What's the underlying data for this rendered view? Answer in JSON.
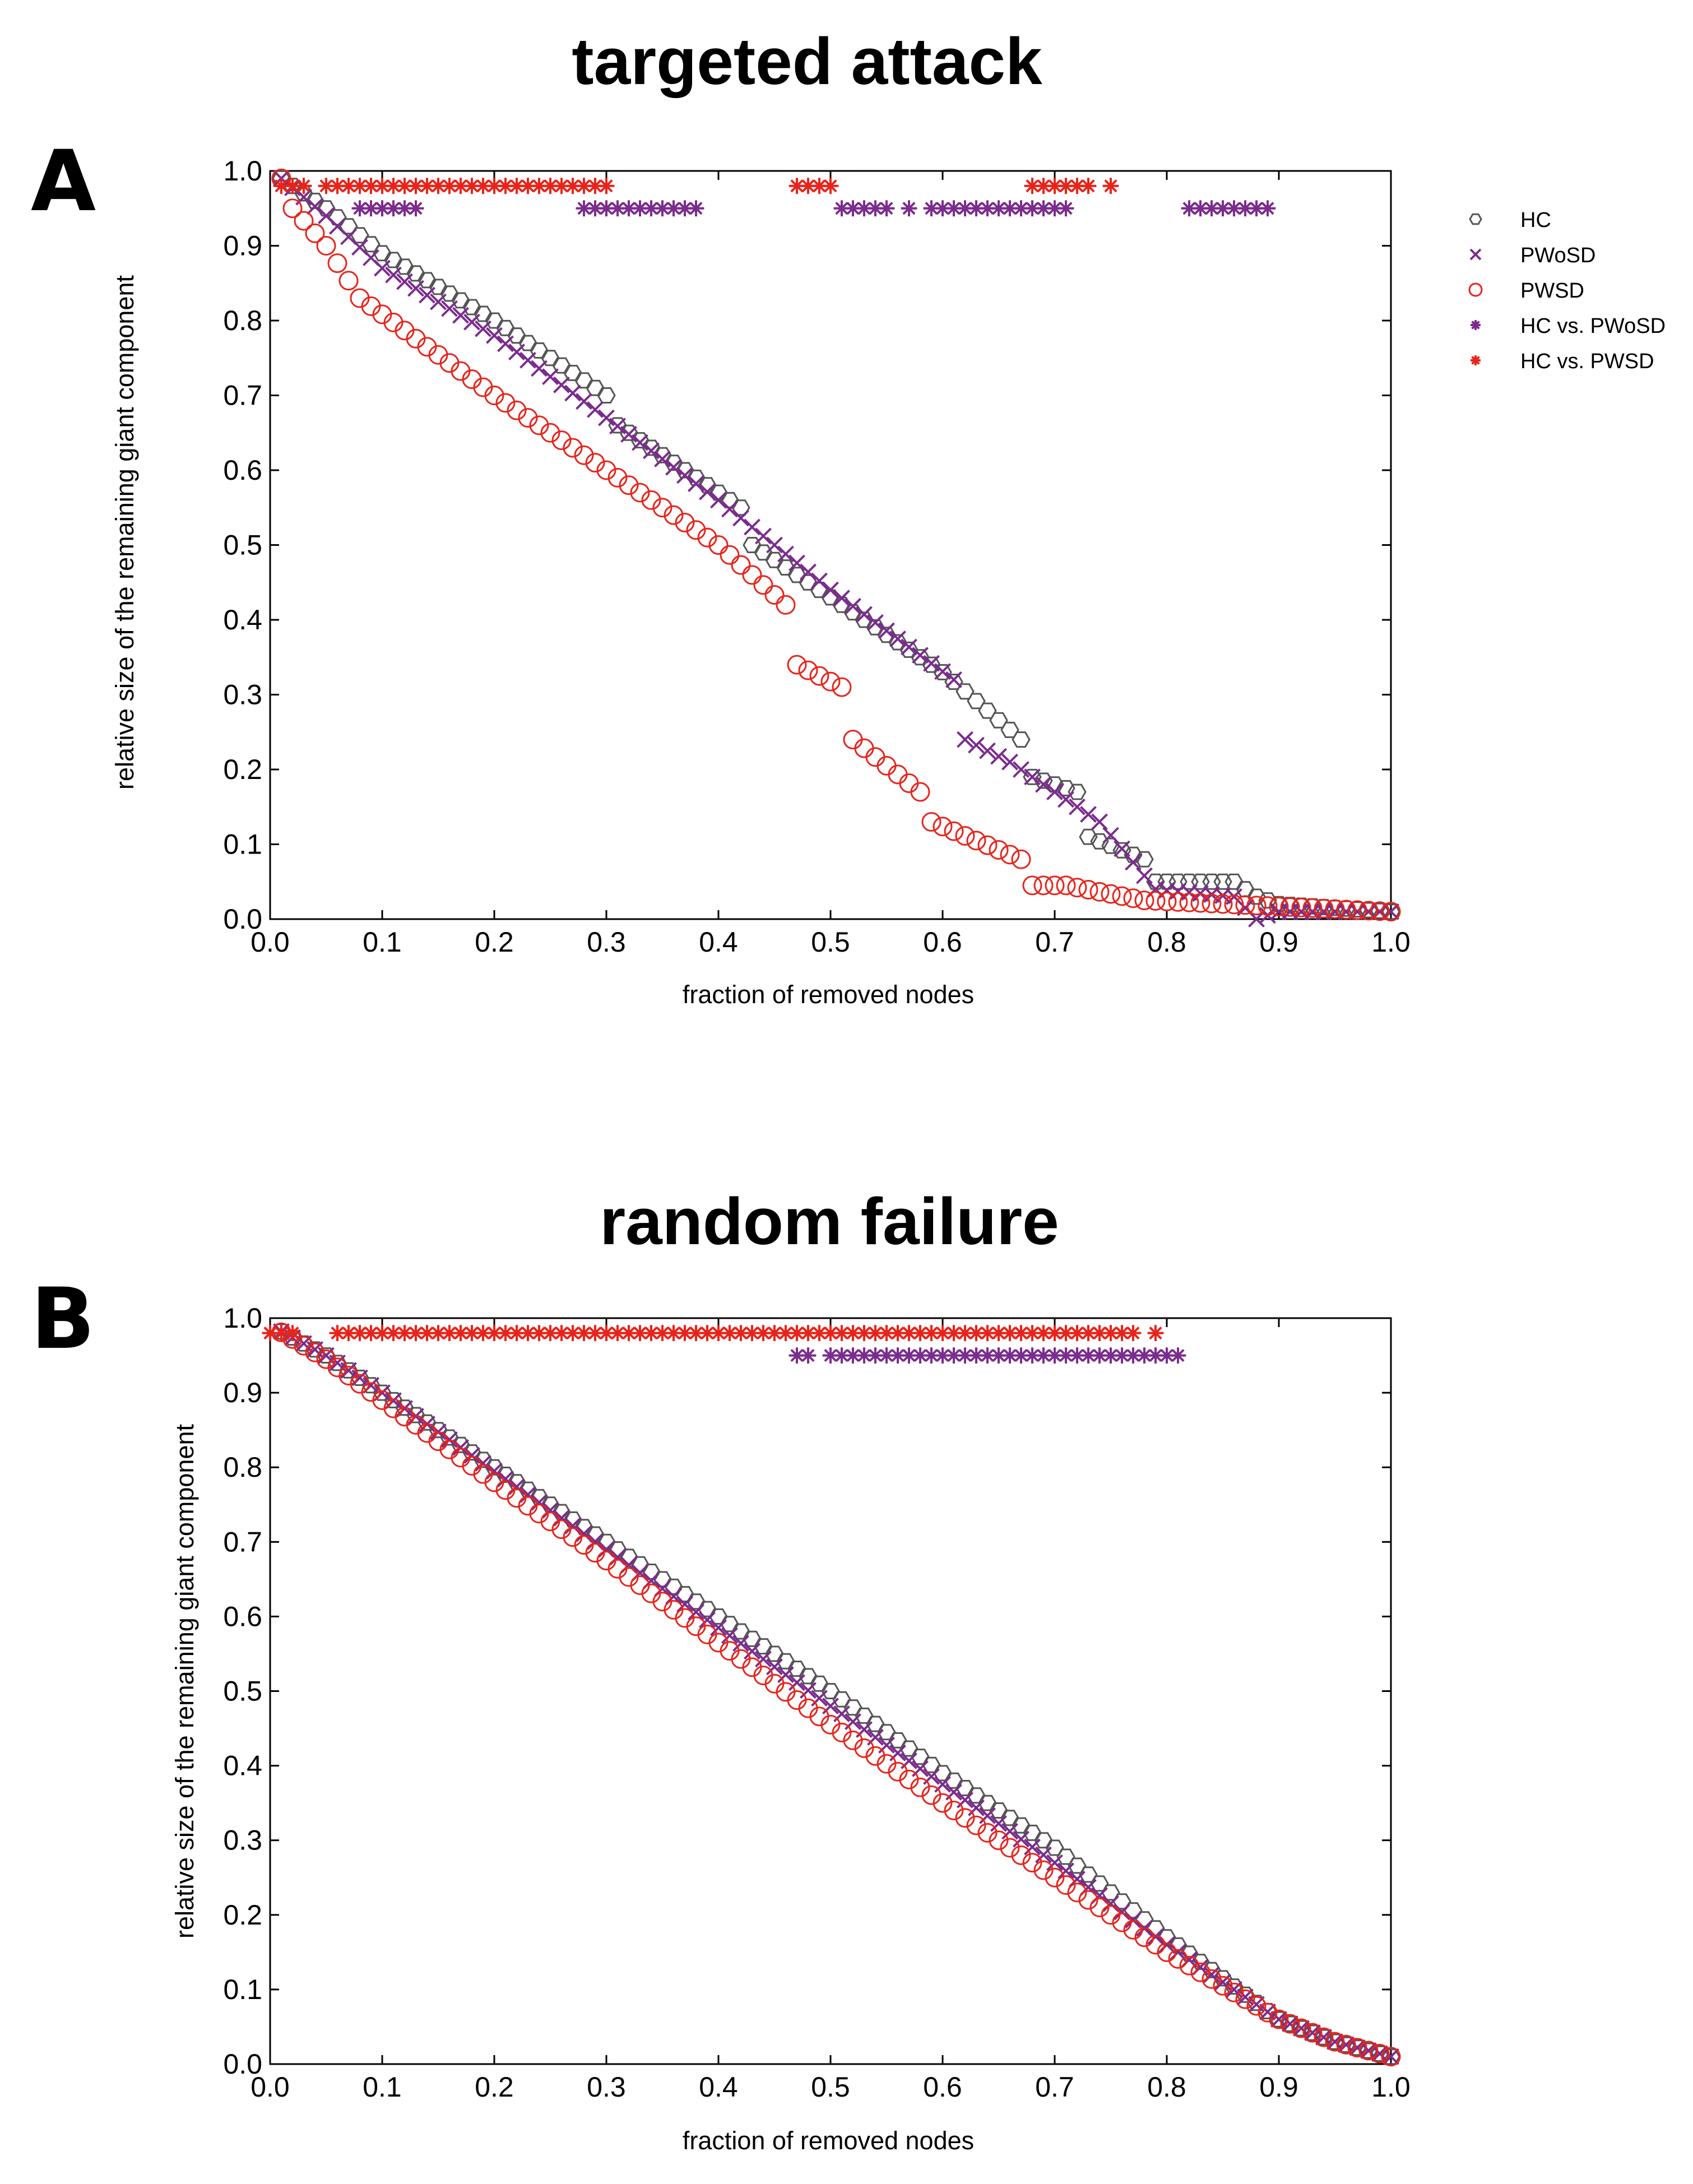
{
  "chart_data": [
    {
      "panel": "A",
      "type": "scatter",
      "title": "targeted attack",
      "xlabel": "fraction of removed nodes",
      "ylabel": "relative size of the remaining giant component",
      "xlim": [
        0,
        1
      ],
      "ylim": [
        0,
        1
      ],
      "xticks": [
        "0.0",
        "0.1",
        "0.2",
        "0.3",
        "0.4",
        "0.5",
        "0.6",
        "0.7",
        "0.8",
        "0.9",
        "1.0"
      ],
      "yticks": [
        "0.0",
        "0.1",
        "0.2",
        "0.3",
        "0.4",
        "0.5",
        "0.6",
        "0.7",
        "0.8",
        "0.9",
        "1.0"
      ],
      "legend": [
        {
          "label": "HC",
          "marker": "hexagon",
          "color": "#555555"
        },
        {
          "label": "PWoSD",
          "marker": "x",
          "color": "#7B2C8E"
        },
        {
          "label": "PWSD",
          "marker": "circle",
          "color": "#E8231A"
        },
        {
          "label": "HC  vs. PWoSD",
          "marker": "star",
          "color": "#7B2C8E"
        },
        {
          "label": "HC  vs. PWSD",
          "marker": "star",
          "color": "#E8231A"
        }
      ],
      "series": [
        {
          "name": "HC",
          "marker": "hexagon",
          "color": "#555555",
          "knots": [
            [
              0.01,
              0.99
            ],
            [
              0.05,
              0.95
            ],
            [
              0.1,
              0.89
            ],
            [
              0.2,
              0.8
            ],
            [
              0.3,
              0.7
            ],
            [
              0.31,
              0.66
            ],
            [
              0.42,
              0.55
            ],
            [
              0.43,
              0.5
            ],
            [
              0.6,
              0.33
            ],
            [
              0.67,
              0.24
            ],
            [
              0.68,
              0.19
            ],
            [
              0.72,
              0.17
            ],
            [
              0.73,
              0.11
            ],
            [
              0.78,
              0.08
            ],
            [
              0.79,
              0.05
            ],
            [
              0.86,
              0.05
            ],
            [
              0.88,
              0.03
            ],
            [
              0.9,
              0.02
            ],
            [
              1.0,
              0.01
            ]
          ]
        },
        {
          "name": "PWoSD",
          "marker": "x",
          "color": "#7B2C8E",
          "knots": [
            [
              0.01,
              0.99
            ],
            [
              0.05,
              0.94
            ],
            [
              0.1,
              0.87
            ],
            [
              0.2,
              0.78
            ],
            [
              0.3,
              0.67
            ],
            [
              0.4,
              0.56
            ],
            [
              0.5,
              0.44
            ],
            [
              0.61,
              0.32
            ],
            [
              0.62,
              0.24
            ],
            [
              0.66,
              0.21
            ],
            [
              0.74,
              0.13
            ],
            [
              0.79,
              0.04
            ],
            [
              0.86,
              0.03
            ],
            [
              0.88,
              0.0
            ],
            [
              0.9,
              0.01
            ],
            [
              1.0,
              0.01
            ]
          ]
        },
        {
          "name": "PWSD",
          "marker": "circle",
          "color": "#E8231A",
          "knots": [
            [
              0.01,
              0.99
            ],
            [
              0.02,
              0.95
            ],
            [
              0.05,
              0.9
            ],
            [
              0.08,
              0.83
            ],
            [
              0.2,
              0.7
            ],
            [
              0.3,
              0.6
            ],
            [
              0.4,
              0.5
            ],
            [
              0.46,
              0.42
            ],
            [
              0.47,
              0.34
            ],
            [
              0.51,
              0.31
            ],
            [
              0.52,
              0.24
            ],
            [
              0.58,
              0.17
            ],
            [
              0.59,
              0.13
            ],
            [
              0.67,
              0.08
            ],
            [
              0.68,
              0.045
            ],
            [
              0.71,
              0.045
            ],
            [
              0.78,
              0.025
            ],
            [
              1.0,
              0.01
            ]
          ]
        }
      ],
      "significance": [
        {
          "name": "HC  vs. PWSD",
          "color": "#E8231A",
          "y": 0.98,
          "x_ranges": [
            [
              0.01,
              0.03
            ],
            [
              0.05,
              0.3
            ],
            [
              0.47,
              0.5
            ],
            [
              0.68,
              0.73
            ],
            [
              0.75,
              0.75
            ]
          ]
        },
        {
          "name": "HC  vs. PWoSD",
          "color": "#7B2C8E",
          "y": 0.95,
          "x_ranges": [
            [
              0.08,
              0.13
            ],
            [
              0.28,
              0.38
            ],
            [
              0.51,
              0.55
            ],
            [
              0.57,
              0.57
            ],
            [
              0.59,
              0.71
            ],
            [
              0.82,
              0.89
            ]
          ]
        }
      ]
    },
    {
      "panel": "B",
      "type": "scatter",
      "title": "random failure",
      "xlabel": "fraction of removed nodes",
      "ylabel": "relative size of the remaining giant component",
      "xlim": [
        0,
        1
      ],
      "ylim": [
        0,
        1
      ],
      "xticks": [
        "0.0",
        "0.1",
        "0.2",
        "0.3",
        "0.4",
        "0.5",
        "0.6",
        "0.7",
        "0.8",
        "0.9",
        "1.0"
      ],
      "yticks": [
        "0.0",
        "0.1",
        "0.2",
        "0.3",
        "0.4",
        "0.5",
        "0.6",
        "0.7",
        "0.8",
        "0.9",
        "1.0"
      ],
      "series": [
        {
          "name": "HC",
          "marker": "hexagon",
          "color": "#555555",
          "knots": [
            [
              0.0,
              0.99
            ],
            [
              0.05,
              0.95
            ],
            [
              0.1,
              0.9
            ],
            [
              0.2,
              0.8
            ],
            [
              0.3,
              0.7
            ],
            [
              0.4,
              0.6
            ],
            [
              0.5,
              0.5
            ],
            [
              0.6,
              0.39
            ],
            [
              0.7,
              0.29
            ],
            [
              0.8,
              0.17
            ],
            [
              0.9,
              0.06
            ],
            [
              0.95,
              0.03
            ],
            [
              1.0,
              0.01
            ]
          ]
        },
        {
          "name": "PWoSD",
          "marker": "x",
          "color": "#7B2C8E",
          "knots": [
            [
              0.0,
              0.99
            ],
            [
              0.05,
              0.95
            ],
            [
              0.1,
              0.9
            ],
            [
              0.2,
              0.795
            ],
            [
              0.3,
              0.69
            ],
            [
              0.4,
              0.585
            ],
            [
              0.5,
              0.48
            ],
            [
              0.6,
              0.375
            ],
            [
              0.7,
              0.27
            ],
            [
              0.8,
              0.16
            ],
            [
              0.9,
              0.06
            ],
            [
              0.95,
              0.03
            ],
            [
              1.0,
              0.01
            ]
          ]
        },
        {
          "name": "PWSD",
          "marker": "circle",
          "color": "#E8231A",
          "knots": [
            [
              0.0,
              0.99
            ],
            [
              0.05,
              0.945
            ],
            [
              0.1,
              0.89
            ],
            [
              0.2,
              0.78
            ],
            [
              0.3,
              0.675
            ],
            [
              0.4,
              0.565
            ],
            [
              0.5,
              0.455
            ],
            [
              0.6,
              0.35
            ],
            [
              0.7,
              0.25
            ],
            [
              0.8,
              0.15
            ],
            [
              0.9,
              0.06
            ],
            [
              0.95,
              0.03
            ],
            [
              1.0,
              0.01
            ]
          ]
        }
      ],
      "significance": [
        {
          "name": "HC  vs. PWSD",
          "color": "#E8231A",
          "y": 0.98,
          "x_ranges": [
            [
              0.0,
              0.02
            ],
            [
              0.06,
              0.77
            ],
            [
              0.79,
              0.79
            ]
          ]
        },
        {
          "name": "HC  vs. PWoSD",
          "color": "#7B2C8E",
          "y": 0.95,
          "x_ranges": [
            [
              0.47,
              0.48
            ],
            [
              0.5,
              0.81
            ]
          ]
        }
      ]
    }
  ]
}
